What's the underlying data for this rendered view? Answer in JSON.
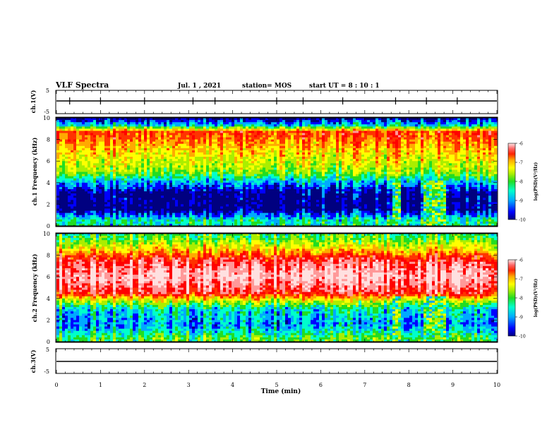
{
  "header": {
    "title": "VLF Spectra",
    "date": "Jul. 1 , 2021",
    "station": "station= MOS",
    "start": "start UT = 8 : 10 : 1"
  },
  "chart_data": [
    {
      "type": "line",
      "panel": "ch1-voltage",
      "ylabel": "ch.1(V)",
      "ylim": [
        -5,
        5
      ],
      "yticks": [
        "5",
        "-5"
      ],
      "x": [
        0,
        10
      ],
      "values": [
        0,
        0
      ],
      "color": "#000000"
    },
    {
      "type": "heatmap",
      "panel": "ch1-spectrogram",
      "ylabel": "ch.1 Frequency (kHz)",
      "ylim": [
        0,
        10
      ],
      "yticks": [
        "0",
        "2",
        "4",
        "6",
        "8",
        "10"
      ],
      "xlim": [
        0,
        10
      ],
      "colorbar": {
        "label": "log(PSD)(V²/Hz)",
        "ticks": [
          "-6",
          "-7",
          "-8",
          "-9",
          "-10"
        ],
        "range": [
          -10,
          -6
        ]
      },
      "profile": [
        {
          "f": 0.5,
          "v": -8.8
        },
        {
          "f": 1.5,
          "v": -10
        },
        {
          "f": 3.0,
          "v": -10
        },
        {
          "f": 4.0,
          "v": -9.2
        },
        {
          "f": 5.0,
          "v": -8.2
        },
        {
          "f": 6.0,
          "v": -7.9
        },
        {
          "f": 7.0,
          "v": -7.6
        },
        {
          "f": 8.0,
          "v": -7.2
        },
        {
          "f": 8.7,
          "v": -7.0
        },
        {
          "f": 9.3,
          "v": -9.0
        },
        {
          "f": 10.0,
          "v": -10
        }
      ],
      "bursts": [
        {
          "t0": 7.6,
          "t1": 7.85
        },
        {
          "t0": 8.35,
          "t1": 8.85
        }
      ]
    },
    {
      "type": "heatmap",
      "panel": "ch2-spectrogram",
      "ylabel": "ch.2 Frequency (kHz)",
      "ylim": [
        0,
        10
      ],
      "yticks": [
        "0",
        "2",
        "4",
        "6",
        "8",
        "10"
      ],
      "xlim": [
        0,
        10
      ],
      "colorbar": {
        "label": "log(PSD)(V²/Hz)",
        "ticks": [
          "-6",
          "-7",
          "-8",
          "-9",
          "-10"
        ],
        "range": [
          -10,
          -6
        ]
      },
      "profile": [
        {
          "f": 0.3,
          "v": -8.5
        },
        {
          "f": 1.5,
          "v": -9.3
        },
        {
          "f": 3.0,
          "v": -9.0
        },
        {
          "f": 3.8,
          "v": -8.0
        },
        {
          "f": 4.5,
          "v": -6.7
        },
        {
          "f": 6.0,
          "v": -6.1
        },
        {
          "f": 7.5,
          "v": -6.6
        },
        {
          "f": 8.7,
          "v": -7.8
        },
        {
          "f": 9.5,
          "v": -8.4
        },
        {
          "f": 10.0,
          "v": -8.6
        }
      ],
      "bursts": [
        {
          "t0": 7.6,
          "t1": 7.85
        },
        {
          "t0": 8.35,
          "t1": 8.85
        }
      ]
    },
    {
      "type": "line",
      "panel": "ch3-voltage",
      "ylabel": "ch.3(V)",
      "ylim": [
        -5,
        5
      ],
      "yticks": [
        "5",
        "-5"
      ],
      "x": [
        0,
        10
      ],
      "values": [
        -3,
        -3
      ],
      "color": "#000000"
    }
  ],
  "xaxis": {
    "label": "Time (min)",
    "ticks": [
      "0",
      "1",
      "2",
      "3",
      "4",
      "5",
      "6",
      "7",
      "8",
      "9",
      "10"
    ],
    "range": [
      0,
      10
    ]
  },
  "colors": {
    "scale": [
      "#000080",
      "#0000ff",
      "#00aaff",
      "#00ffcc",
      "#22dd22",
      "#aaee00",
      "#ffff00",
      "#ffaa00",
      "#ff3300",
      "#ff0000",
      "#ff9999",
      "#ffe0e0"
    ],
    "background": "#000000"
  }
}
